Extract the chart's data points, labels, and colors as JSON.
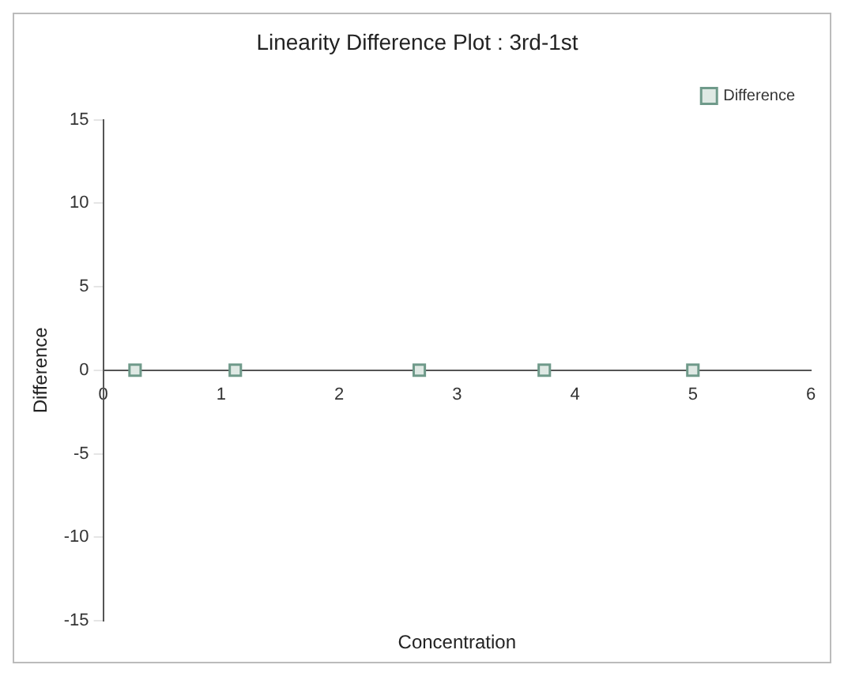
{
  "chart_data": {
    "type": "scatter",
    "title": "Linearity Difference Plot : 3rd-1st",
    "xlabel": "Concentration",
    "ylabel": "Difference",
    "series": [
      {
        "name": "Difference",
        "color": "#6f9a8a",
        "x": [
          0.27,
          1.12,
          2.68,
          3.74,
          5.0
        ],
        "values": [
          0,
          0,
          0,
          0,
          0
        ]
      }
    ],
    "xlim": [
      0,
      6
    ],
    "xticks": [
      0,
      1,
      2,
      3,
      4,
      5,
      6
    ],
    "ylim": [
      -15,
      15
    ],
    "yticks": [
      -15,
      -10,
      -5,
      0,
      5,
      10,
      15
    ],
    "grid": false,
    "legend": "top right",
    "marker": "square"
  }
}
